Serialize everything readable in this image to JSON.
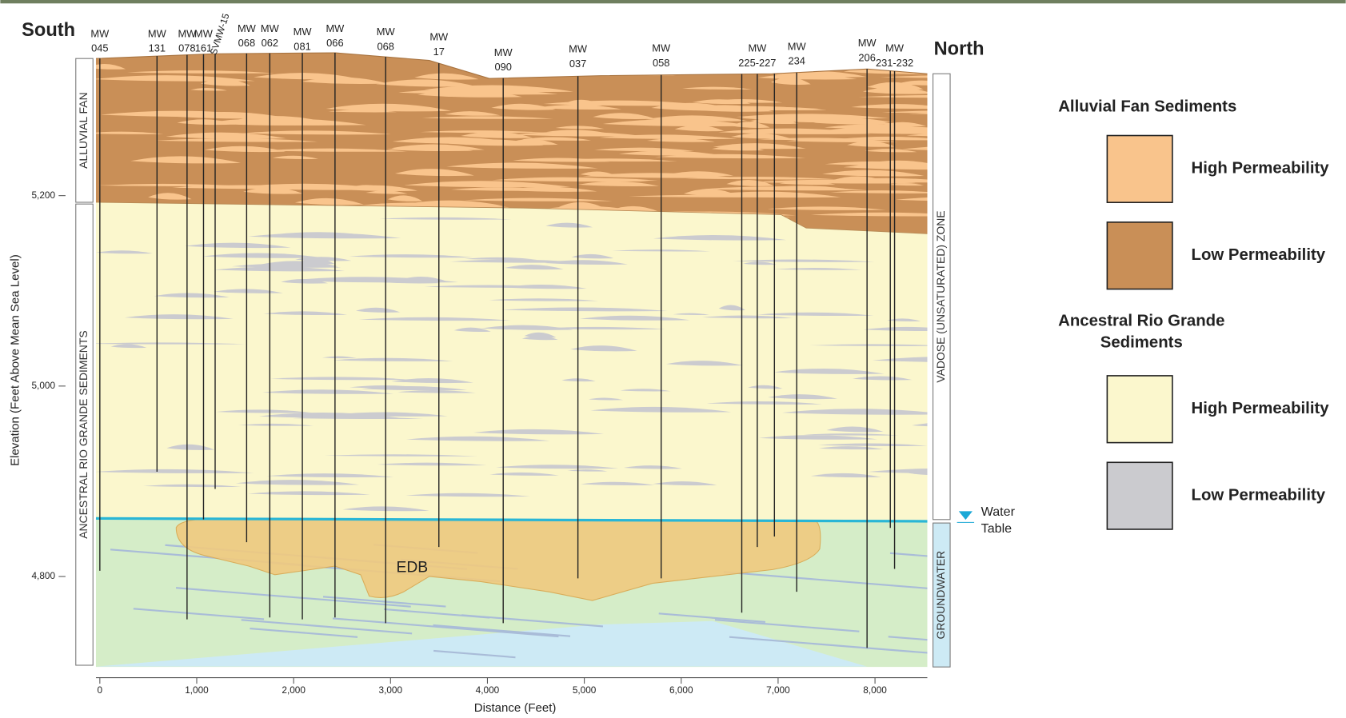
{
  "south": "South",
  "north": "North",
  "xlabel": "Distance (Feet)",
  "ylabel": "Elevation (Feet Above Mean Sea Level)",
  "xlim": [
    -40,
    8540
  ],
  "ylim": [
    4705,
    5355
  ],
  "xticks": [
    0,
    {
      "value": 1000,
      "label": "1,000"
    },
    {
      "value": 2000,
      "label": "2,000"
    },
    {
      "value": 3000,
      "label": "3,000"
    },
    {
      "value": 4000,
      "label": "4,000"
    },
    {
      "value": 5000,
      "label": "5,000"
    },
    {
      "value": 6000,
      "label": "6,000"
    },
    {
      "value": 7000,
      "label": "7,000"
    },
    {
      "value": 8000,
      "label": "8,000"
    }
  ],
  "yticks": [
    {
      "value": 4800,
      "label": "4,800"
    },
    {
      "value": 5000,
      "label": "5,000"
    },
    {
      "value": 5200,
      "label": "5,200"
    }
  ],
  "ground_surface": {
    "x": [
      -40,
      1190,
      2430,
      3400,
      4020,
      5170,
      6940,
      7920,
      8540
    ],
    "elevation": [
      5344,
      5349,
      5350,
      5342,
      5323,
      5326,
      5328,
      5333,
      5328
    ]
  },
  "fan_base": {
    "x": [
      -40,
      4370,
      7030,
      7290,
      8540
    ],
    "elevation": [
      5193,
      5187,
      5180,
      5166,
      5160
    ]
  },
  "water_table": {
    "x": [
      -40,
      8540
    ],
    "elevation": [
      4861,
      4858
    ],
    "label": [
      "Water",
      "Table"
    ]
  },
  "wells": [
    {
      "label": [
        "MW",
        "045"
      ],
      "x": 0,
      "bottom": 4806
    },
    {
      "label": [
        "MW",
        "131"
      ],
      "x": 590,
      "bottom": 4910
    },
    {
      "label": [
        "MW",
        "078"
      ],
      "x": 900,
      "bottom": 4755
    },
    {
      "label": [
        "MW",
        "161"
      ],
      "x": 1070,
      "bottom": 4860
    },
    {
      "label": [
        "SVMW-15"
      ],
      "x": 1190,
      "bottom": 4892
    },
    {
      "label": [
        "MW",
        "068"
      ],
      "x": 1515,
      "bottom": 4836
    },
    {
      "label": [
        "MW",
        "062"
      ],
      "x": 1754,
      "bottom": 4757
    },
    {
      "label": [
        "MW",
        "081"
      ],
      "x": 2090,
      "bottom": 4755
    },
    {
      "label": [
        "MW",
        "066"
      ],
      "x": 2427,
      "bottom": 4757
    },
    {
      "label": [
        "MW",
        "068"
      ],
      "x": 2950,
      "bottom": 4751
    },
    {
      "label": [
        "MW",
        "17"
      ],
      "x": 3499,
      "bottom": 4831
    },
    {
      "label": [
        "MW",
        "090"
      ],
      "x": 4163,
      "bottom": 4751
    },
    {
      "label": [
        "MW",
        "037"
      ],
      "x": 4934,
      "bottom": 4798
    },
    {
      "label": [
        "MW",
        "058"
      ],
      "x": 5793,
      "bottom": 4798
    },
    {
      "label": null,
      "x": 6625,
      "bottom": 4762
    },
    {
      "label": [
        "MW",
        "225-227"
      ],
      "x": 6785,
      "bottom": 4831
    },
    {
      "label": null,
      "x": 6962,
      "bottom": 4842
    },
    {
      "label": [
        "MW",
        "234"
      ],
      "x": 7192,
      "bottom": 4784
    },
    {
      "label": [
        "MW",
        "206"
      ],
      "x": 7918,
      "bottom": 4725
    },
    {
      "label": null,
      "x": 8158,
      "bottom": 4851
    },
    {
      "label": [
        "MW",
        "231-232"
      ],
      "x": 8202,
      "bottom": 4808
    }
  ],
  "zones": {
    "alluvial_fan": "ALLUVIAL FAN",
    "ancestral": "ANCESTRAL RIO GRANDE SEDIMENTS",
    "vadose": "VADOSE (UNSATURATED)  ZONE",
    "groundwater": "GROUNDWATER"
  },
  "plume_label": "EDB",
  "legend": {
    "groups": [
      {
        "title": [
          "Alluvial Fan Sediments"
        ],
        "items": [
          {
            "label": "High Permeability",
            "color": "#f9c48c"
          },
          {
            "label": "Low Permeability",
            "color": "#c98f57"
          }
        ]
      },
      {
        "title": [
          "Ancestral Rio Grande",
          "Sediments"
        ],
        "items": [
          {
            "label": "High Permeability",
            "color": "#fbf7cd"
          },
          {
            "label": "Low Permeability",
            "color": "#cbcbcf"
          }
        ]
      }
    ]
  }
}
